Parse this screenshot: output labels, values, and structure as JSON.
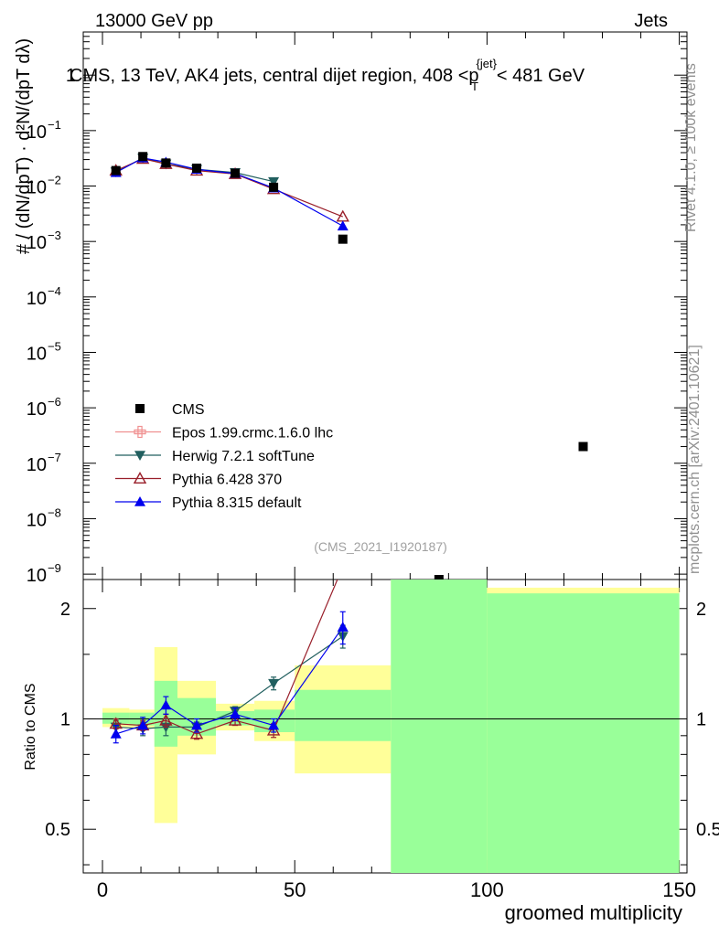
{
  "header": {
    "energy": "13000 GeV pp",
    "category": "Jets",
    "side_version": "Rivet 4.1.0, ≥ 100k events",
    "side_url": "mcplots.cern.ch [arXiv:2401.10621]",
    "analysis_id": "(CMS_2021_I1920187)"
  },
  "chart_data": {
    "type": "line",
    "title_parts": [
      "CMS, 13 TeV, AK4 jets, central dijet region, 408 <",
      "p",
      "{jet}",
      "T",
      "< 481 GeV"
    ],
    "xlabel": "groomed multiplicity",
    "ylabel_main": "# / (dN/dpT) · d²N/(dpT dλ)",
    "ylabel_ratio": "Ratio to CMS",
    "xlim": [
      -5,
      152
    ],
    "ylim_main": [
      8e-10,
      6
    ],
    "ylim_ratio": [
      0.38,
      2.4
    ],
    "x_ticks": [
      0,
      50,
      100,
      150
    ],
    "main_y_ticks": [
      {
        "v": 1,
        "label": "1"
      },
      {
        "v": 0.1,
        "label": "10",
        "exp": "−1"
      },
      {
        "v": 0.01,
        "label": "10",
        "exp": "−2"
      },
      {
        "v": 0.001,
        "label": "10",
        "exp": "−3"
      },
      {
        "v": 0.0001,
        "label": "10",
        "exp": "−4"
      },
      {
        "v": 1e-05,
        "label": "10",
        "exp": "−5"
      },
      {
        "v": 1e-06,
        "label": "10",
        "exp": "−6"
      },
      {
        "v": 1e-07,
        "label": "10",
        "exp": "−7"
      },
      {
        "v": 1e-08,
        "label": "10",
        "exp": "−8"
      },
      {
        "v": 1e-09,
        "label": "10",
        "exp": "−9"
      }
    ],
    "ratio_y_ticks": [
      {
        "v": 0.5,
        "label": "0.5"
      },
      {
        "v": 1,
        "label": "1"
      },
      {
        "v": 2,
        "label": "2"
      }
    ],
    "data": {
      "name": "CMS",
      "points": [
        {
          "x": 3.5,
          "y": 0.019
        },
        {
          "x": 10.5,
          "y": 0.034
        },
        {
          "x": 16.5,
          "y": 0.026
        },
        {
          "x": 24.5,
          "y": 0.021
        },
        {
          "x": 34.5,
          "y": 0.017
        },
        {
          "x": 44.5,
          "y": 0.0095
        },
        {
          "x": 62.5,
          "y": 0.0011
        },
        {
          "x": 87.5,
          "y": 8e-10
        },
        {
          "x": 125,
          "y": 2e-07
        }
      ]
    },
    "bands": [
      {
        "x0": 0,
        "x1": 7,
        "y1": [
          0.95,
          1.07
        ],
        "y2": [
          0.97,
          1.04
        ]
      },
      {
        "x0": 7,
        "x1": 13.5,
        "y1": [
          0.94,
          1.06
        ],
        "y2": [
          0.96,
          1.04
        ]
      },
      {
        "x0": 13.5,
        "x1": 19.5,
        "y1": [
          0.52,
          1.57
        ],
        "y2": [
          0.84,
          1.27
        ]
      },
      {
        "x0": 19.5,
        "x1": 29.5,
        "y1": [
          0.8,
          1.27
        ],
        "y2": [
          0.9,
          1.14
        ]
      },
      {
        "x0": 29.5,
        "x1": 39.5,
        "y1": [
          0.93,
          1.1
        ],
        "y2": [
          0.96,
          1.05
        ]
      },
      {
        "x0": 39.5,
        "x1": 50,
        "y1": [
          0.87,
          1.12
        ],
        "y2": [
          0.92,
          1.06
        ]
      },
      {
        "x0": 50,
        "x1": 75,
        "y1": [
          0.71,
          1.4
        ],
        "y2": [
          0.87,
          1.2
        ]
      },
      {
        "x0": 75,
        "x1": 100,
        "y1": [
          0.3,
          2.6
        ],
        "y2": [
          0.3,
          2.6
        ]
      },
      {
        "x0": 100,
        "x1": 150,
        "y1": [
          0.3,
          2.28
        ],
        "y2": [
          0.3,
          2.2
        ]
      }
    ],
    "series": [
      {
        "name": "Epos 1.99.crmc.1.6.0 lhc",
        "color": "#f09090",
        "marker": "cross",
        "points": [],
        "ratio": []
      },
      {
        "name": "Herwig 7.2.1 softTune",
        "color": "#215f5f",
        "marker": "tri-down",
        "points": [
          {
            "x": 3.5,
            "y": 0.018
          },
          {
            "x": 10.5,
            "y": 0.032
          },
          {
            "x": 16.5,
            "y": 0.025
          },
          {
            "x": 24.5,
            "y": 0.02
          },
          {
            "x": 34.5,
            "y": 0.0175
          },
          {
            "x": 44.5,
            "y": 0.012
          }
        ],
        "ratio": [
          {
            "x": 3.5,
            "y": 0.95,
            "e": 0.04
          },
          {
            "x": 10.5,
            "y": 0.94,
            "e": 0.04
          },
          {
            "x": 16.5,
            "y": 0.95,
            "e": 0.05
          },
          {
            "x": 24.5,
            "y": 0.95,
            "e": 0.03
          },
          {
            "x": 34.5,
            "y": 1.05,
            "e": 0.03
          },
          {
            "x": 44.5,
            "y": 1.25,
            "e": 0.05
          },
          {
            "x": 62.5,
            "y": 1.68,
            "e": 0.12
          }
        ]
      },
      {
        "name": "Pythia 6.428 370",
        "color": "#991f2a",
        "marker": "tri-up-open",
        "points": [
          {
            "x": 3.5,
            "y": 0.019
          },
          {
            "x": 10.5,
            "y": 0.031
          },
          {
            "x": 16.5,
            "y": 0.025
          },
          {
            "x": 24.5,
            "y": 0.019
          },
          {
            "x": 34.5,
            "y": 0.0165
          },
          {
            "x": 44.5,
            "y": 0.0088
          },
          {
            "x": 62.5,
            "y": 0.0028
          }
        ],
        "ratio": [
          {
            "x": 3.5,
            "y": 0.97,
            "e": 0.03
          },
          {
            "x": 10.5,
            "y": 0.96,
            "e": 0.03
          },
          {
            "x": 16.5,
            "y": 0.99,
            "e": 0.04
          },
          {
            "x": 24.5,
            "y": 0.91,
            "e": 0.03
          },
          {
            "x": 34.5,
            "y": 0.99,
            "e": 0.03
          },
          {
            "x": 44.5,
            "y": 0.93,
            "e": 0.04
          },
          {
            "x": 62.5,
            "y": 2.6,
            "e": 0
          }
        ]
      },
      {
        "name": "Pythia 8.315 default",
        "color": "#0000ee",
        "marker": "tri-up",
        "points": [
          {
            "x": 3.5,
            "y": 0.0175
          },
          {
            "x": 10.5,
            "y": 0.032
          },
          {
            "x": 16.5,
            "y": 0.027
          },
          {
            "x": 24.5,
            "y": 0.02
          },
          {
            "x": 34.5,
            "y": 0.0168
          },
          {
            "x": 44.5,
            "y": 0.0092
          },
          {
            "x": 62.5,
            "y": 0.0019
          }
        ],
        "ratio": [
          {
            "x": 3.5,
            "y": 0.91,
            "e": 0.05
          },
          {
            "x": 10.5,
            "y": 0.96,
            "e": 0.05
          },
          {
            "x": 16.5,
            "y": 1.09,
            "e": 0.06
          },
          {
            "x": 24.5,
            "y": 0.96,
            "e": 0.04
          },
          {
            "x": 34.5,
            "y": 1.03,
            "e": 0.04
          },
          {
            "x": 44.5,
            "y": 0.96,
            "e": 0.04
          },
          {
            "x": 62.5,
            "y": 1.78,
            "e": 0.18
          }
        ]
      }
    ]
  }
}
